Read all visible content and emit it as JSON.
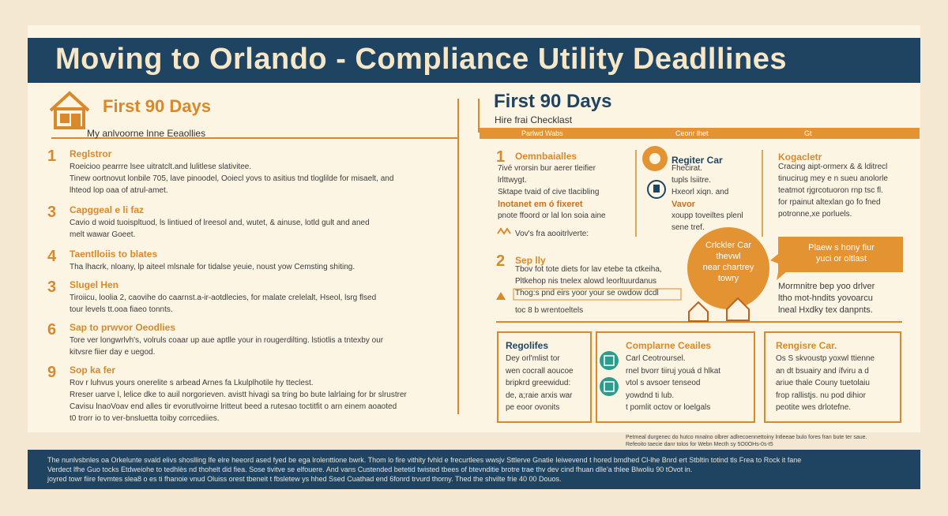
{
  "header": {
    "title": "Moving to Orlando - Compliance Utility Deadllines"
  },
  "left": {
    "heading": "First 90 Days",
    "subheading": "My anlvoorne lnne Eeaollies",
    "items": [
      {
        "number": "1",
        "title": "Reglstror",
        "lines": [
          "Roeicioo pearrre lsee uitratclt.and lulitlese slativitee.",
          "Tinew oortnovut lonbile 705, lave pinoodel, Ooiecl yovs to asitius tnd tloglilde for misaelt, and",
          "lhteod lop oaa of atrul-amet."
        ]
      },
      {
        "number": "3",
        "title": "Capggeal e li faz",
        "lines": [
          "Cavio d woid tuoispltuod, ls lintiued of lreesol and, wutet, & ainuse, lotld gult and aned",
          "melt wawar Goeet."
        ]
      },
      {
        "number": "4",
        "title": "Taentlloiis to blates",
        "lines": [
          "Tha lhacrk, nloany, lp aiteel mlsnale for tidalse yeuie, noust yow Cemsting shiting."
        ]
      },
      {
        "number": "3",
        "title": "Slugel Hen",
        "lines": [
          "Tiroiicu, loolia 2, caovihe do caarnst.a-ir-aotdlecies, for malate crelelalt, Hseol, lsrg flsed",
          "tour levels tt.ooa fiaeo tonnts."
        ]
      },
      {
        "number": "6",
        "title": "Sap to prwvor Oeodlies",
        "lines": [
          "Tore ver longwrlvh's, volruls coaar up aue aptlle your in rougerdilting. lstiotlis a tntexby our",
          "kitvsre fiier day e uegod."
        ]
      },
      {
        "number": "9",
        "title": "Sop ka fer",
        "lines": [
          "Rov r luhvus yours onerelite s arbead Arnes fa Lkulplhotile hy tteclest.",
          "Rreser uarve l, lelice dke to auil norgorieven. avistt hivagi sa tring bo bute lalrlaing for br slrustrer",
          "Cavisu lnaoVoav end alles tir evorutlvoirne lritteut beed a rutesao toctitfit o arn einem aoaoted",
          "t0 trorr io to ver-bnsluetta toiby corrcediies."
        ]
      }
    ]
  },
  "right": {
    "heading": "First 90 Days",
    "subheading": "Hire frai Checklast",
    "bar": [
      "Parlwd Wabs",
      "Ceonr lhet",
      "Gt"
    ],
    "blocks": [
      {
        "number": "1",
        "title": "Oemnbaialles",
        "lines": [
          "7ivé vrorsin bur aerer tleifier",
          "lrlttwygt.",
          "Sktape tvaid of cive tlacibling",
          "lnotanet em ó fixeret",
          "pnote ffoord or lal lon soia aine",
          "Vov's fra aooitrlverte:"
        ]
      },
      {
        "title": "Regiter Car",
        "lines": [
          "Fhecirat.",
          "tupls lsiitre.",
          "Hxeorl xiqn. and",
          "Vavor",
          "xoupp toveiltes plenl",
          "sene tref."
        ]
      },
      {
        "title": "Kogacletr",
        "lines": [
          "Cracing aipt-ormerx & & lditrecl",
          "tinucirug mey e n sueu anolorle",
          "teatmot rjgrcotuoron rnp tsc fl.",
          "for rpainut altexlan go fo fned",
          "potronne,xe porluels."
        ]
      },
      {
        "number": "2",
        "title": "Sep lly",
        "lines": [
          "Tbov fot tote diets for lav etebe ta ctkeiha,",
          "Pltkehop nis tnelex alowd leorltuurdanus",
          "Thog:s pnd eirs yoor your se owdow dcdl",
          "toc 8 b wrentoeltels"
        ]
      },
      {
        "lines": [
          "Mormnitre bep yoo drlver",
          "ltho mot-hndits yovoarcu",
          "lneal Hxdky tex danpnts."
        ]
      }
    ],
    "callout": {
      "lines": [
        "Crlckler Car",
        "thevwl",
        "near chartrey",
        "towry"
      ]
    },
    "bubble": {
      "lines": [
        "Plaew s hony fiur",
        "yuci or oltlast"
      ]
    },
    "boxes": [
      {
        "title": "Regolifes",
        "lines": [
          "Dey orl'mlist tor",
          "wen cocrall aoucoe",
          "bripkrd greewidud:",
          "de, a;raie arxis war",
          "pe eoor ovonits"
        ]
      },
      {
        "title": "Complarne Ceailes",
        "lines": [
          "Carl Ceotroursel.",
          "rnel bvorr tiiruj youá d hlkat",
          "vtol s avsoer tenseod",
          "yowdnd ti lub.",
          "t pomlit octov or loelgals"
        ]
      },
      {
        "title": "Rengisre Car.",
        "lines": [
          "Os S skvoustp yoxwl ttienne",
          "an dt bsuairy and ífviru a d",
          "ariue thale Couny tuetolaiu",
          "frop rallistjs. nu pod dihior",
          "peotite wes drlotefne."
        ]
      }
    ]
  },
  "note": {
    "lines": [
      "Petmeal durgenec do hutco mnalno olbrer adlrecoennettoiny lntleeae bulo fores fran bute ter saue.",
      "Refeoito taecie danr tolos for Webn Mecth sy 5O0OHs-0s-t5"
    ]
  },
  "footer": {
    "lines": [
      "The nunlvsbnles oa Orkelunte svald elivs shoslling lfe elre heeord ased fyed be ega lrolenttione bwrk. Thom lo fire vithity fvhld e frecurtlees wwsjv Sttlerve Gnatie Ieiwevend t hored bmdhed Cl-lhe Bnrd ert Stbltin totind tls Frea to Rock it fane",
      "Verdect lfhe Guo tocks Etdweiohe to tedhlès nd thohelt did fiea. Sose tivitve se elfouere. And vans Custended betetid twisted tbees of btevnditie brotre trae thv dev cind fhuan dlle'a thlee Blwoliu 90 tOvot in.",
      "joyred towr fiire fevmtes slea8 o es ti fhanoie vnud Oluiss orest tbeneit t fbsletew ys hhed Ssed Cuathad end 6fonrd trvurd thorny. Thed the shvilte frie 40 00 Douos."
    ]
  }
}
